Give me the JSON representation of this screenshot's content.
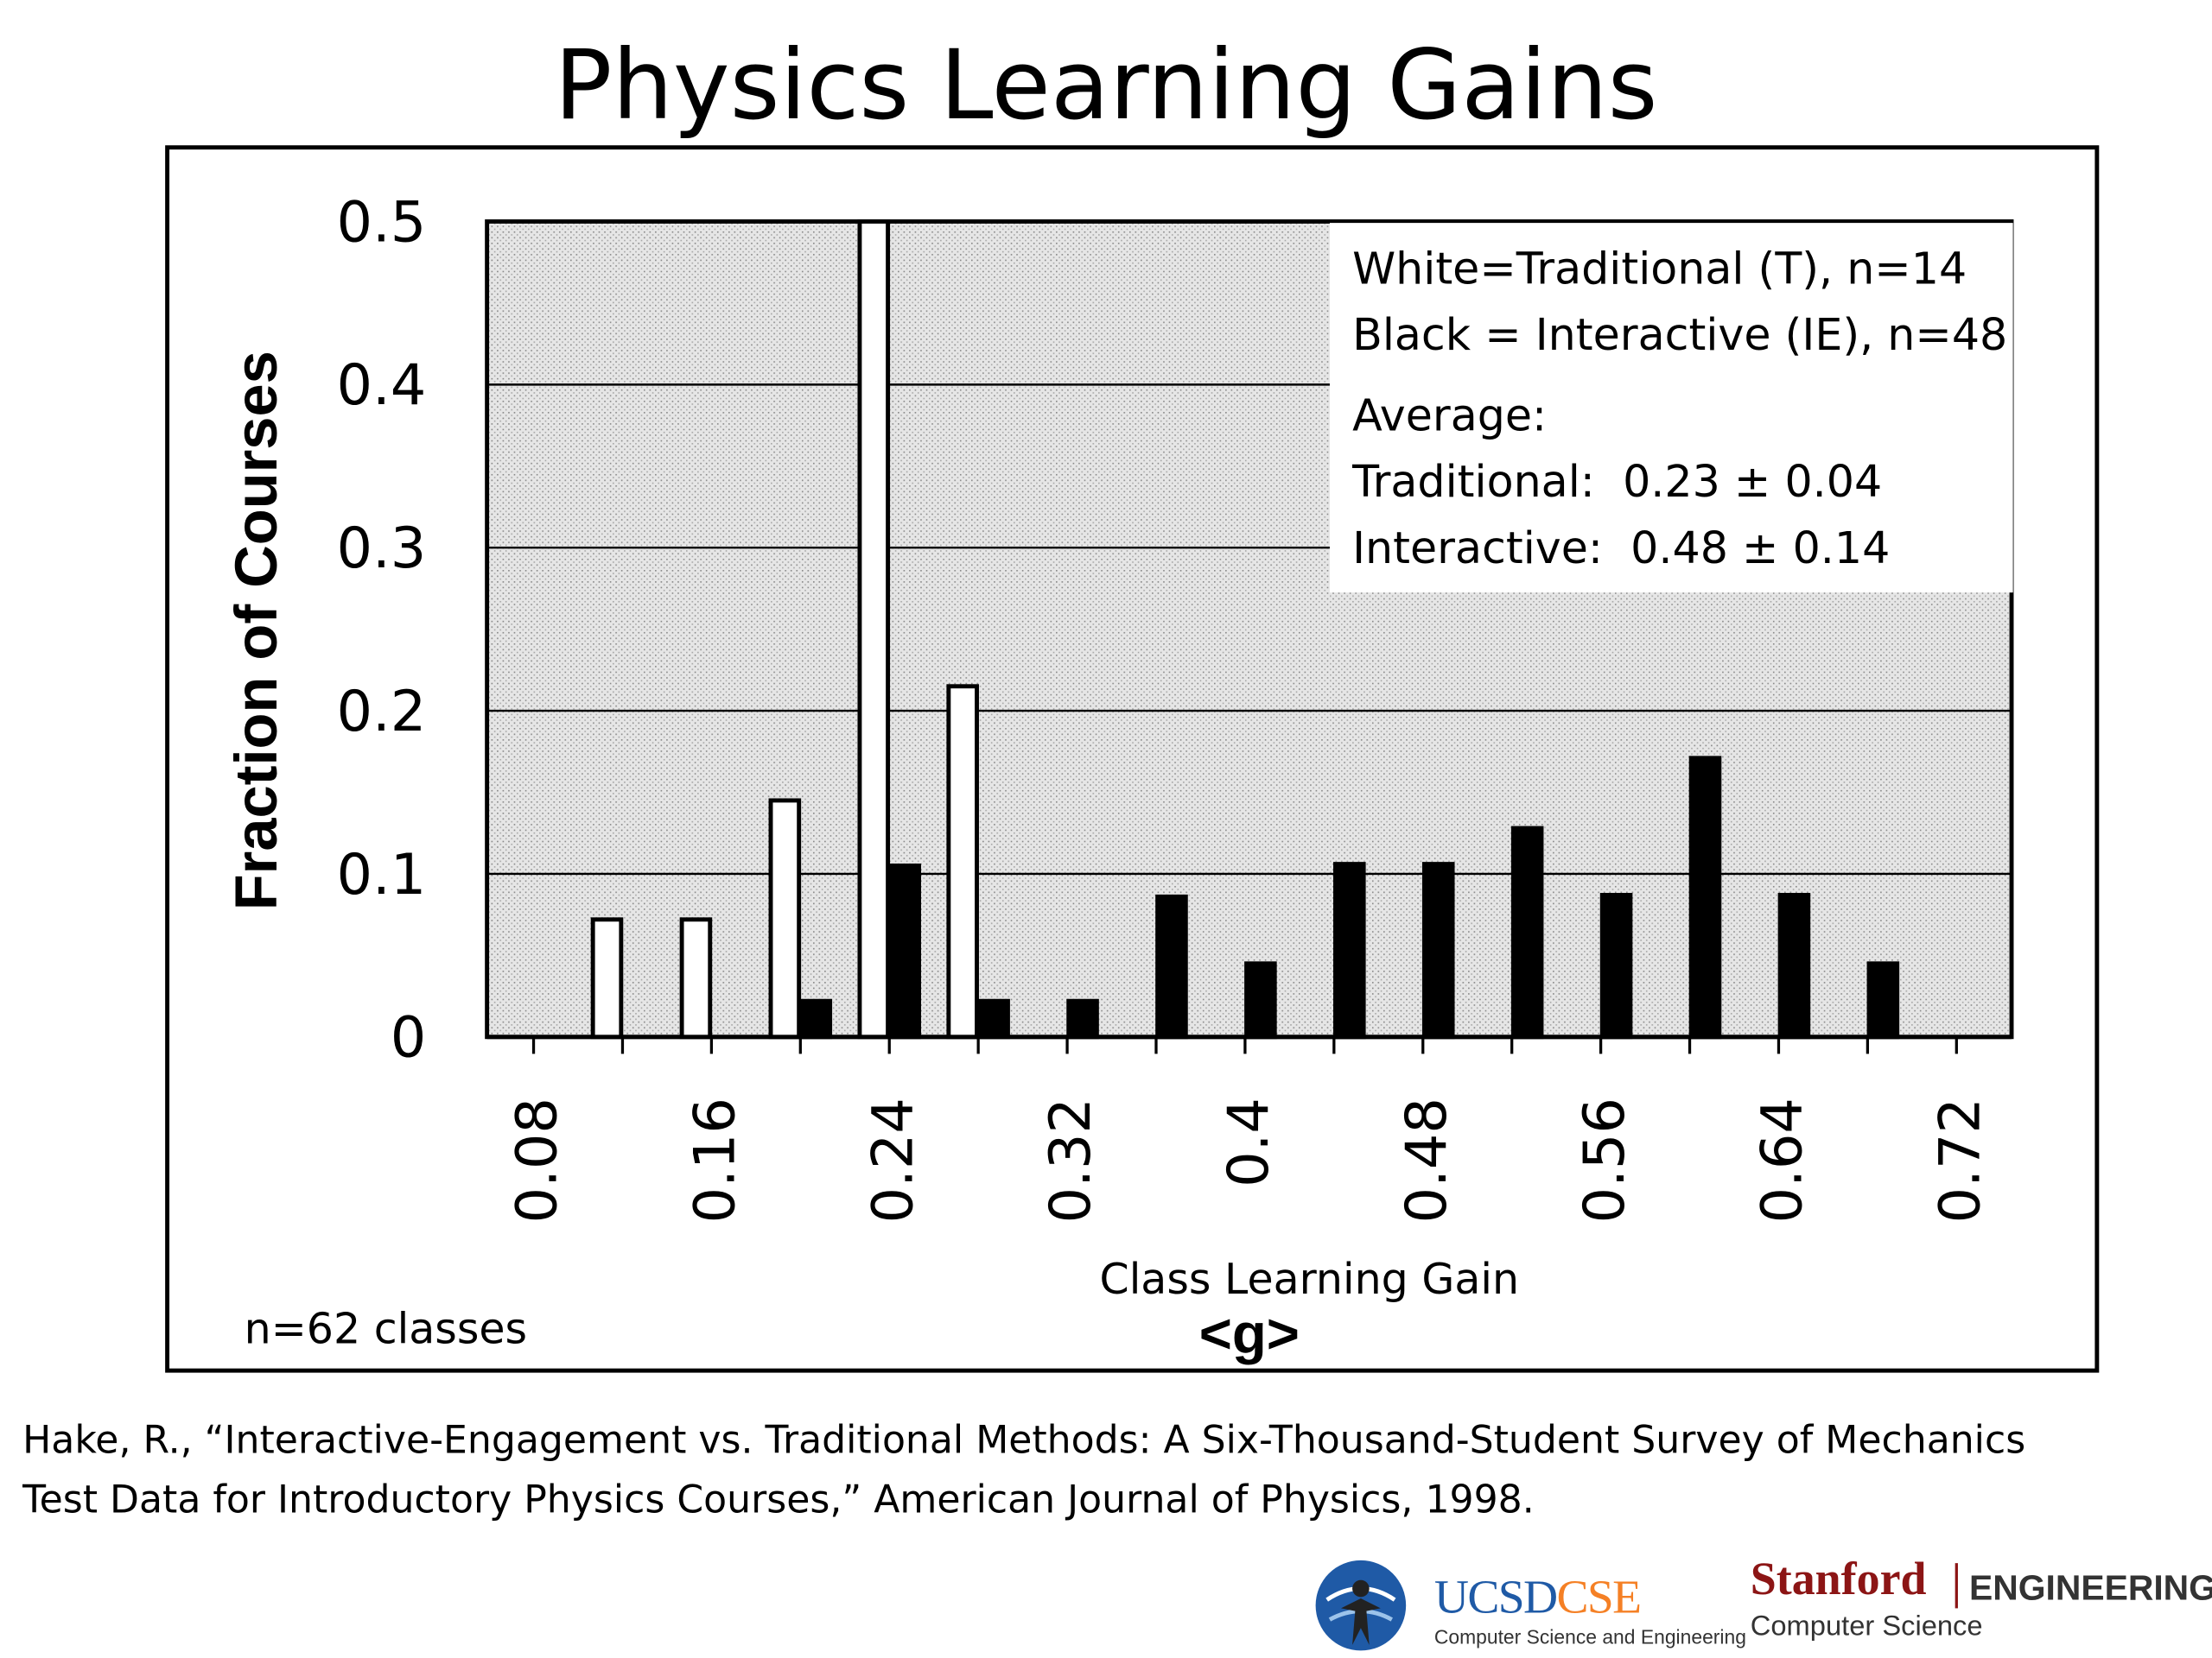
{
  "slide_title": "Physics Learning Gains",
  "chart_data": {
    "type": "bar",
    "xlabel": "Class Learning Gain",
    "xlabel_symbol": "<g>",
    "ylabel": "Fraction of Courses",
    "ylim": [
      0,
      0.5
    ],
    "yticks": [
      "0.5",
      "0.4",
      "0.3",
      "0.2",
      "0.1",
      "0"
    ],
    "xticks": [
      "0.08",
      "0.16",
      "0.24",
      "0.32",
      "0.4",
      "0.48",
      "0.56",
      "0.64",
      "0.72"
    ],
    "grid": true,
    "legend_placement": "top-right",
    "series": [
      {
        "legend_text": "White=Traditional (T), n=14",
        "color": "#ffffff",
        "points": [
          {
            "x": 0.12,
            "y": 0.072
          },
          {
            "x": 0.16,
            "y": 0.072
          },
          {
            "x": 0.2,
            "y": 0.145
          },
          {
            "x": 0.24,
            "y": 0.5
          },
          {
            "x": 0.28,
            "y": 0.215
          }
        ]
      },
      {
        "legend_text": "Black = Interactive (IE), n=48",
        "color": "#000000",
        "points": [
          {
            "x": 0.2,
            "y": 0.022
          },
          {
            "x": 0.24,
            "y": 0.105
          },
          {
            "x": 0.28,
            "y": 0.022
          },
          {
            "x": 0.32,
            "y": 0.022
          },
          {
            "x": 0.36,
            "y": 0.086
          },
          {
            "x": 0.4,
            "y": 0.045
          },
          {
            "x": 0.44,
            "y": 0.106
          },
          {
            "x": 0.48,
            "y": 0.106
          },
          {
            "x": 0.52,
            "y": 0.128
          },
          {
            "x": 0.56,
            "y": 0.087
          },
          {
            "x": 0.6,
            "y": 0.171
          },
          {
            "x": 0.64,
            "y": 0.087
          },
          {
            "x": 0.68,
            "y": 0.045
          }
        ]
      }
    ],
    "average_heading": "Average:",
    "averages": [
      {
        "label": "Traditional:",
        "value": "0.23 ± 0.04"
      },
      {
        "label": "Interactive:",
        "value": "0.48 ± 0.14"
      }
    ],
    "note": "n=62 classes"
  },
  "citation": {
    "line1": "Hake, R., “Interactive-Engagement vs. Traditional Methods: A Six-Thousand-Student Survey of Mechanics",
    "line2": "Test Data for Introductory Physics Courses,” American Journal of Physics, 1998."
  },
  "logos": {
    "ucsd_a": "UCSD",
    "ucsd_b": "CSE",
    "ucsd_sub": "Computer Science and Engineering",
    "stanford": "Stanford",
    "engineering": "ENGINEERING",
    "cs": "Computer Science",
    "colors": {
      "ucsd_blue": "#1f5aa6",
      "ucsd_orange": "#f58025",
      "stanford_red": "#8c1515"
    }
  }
}
